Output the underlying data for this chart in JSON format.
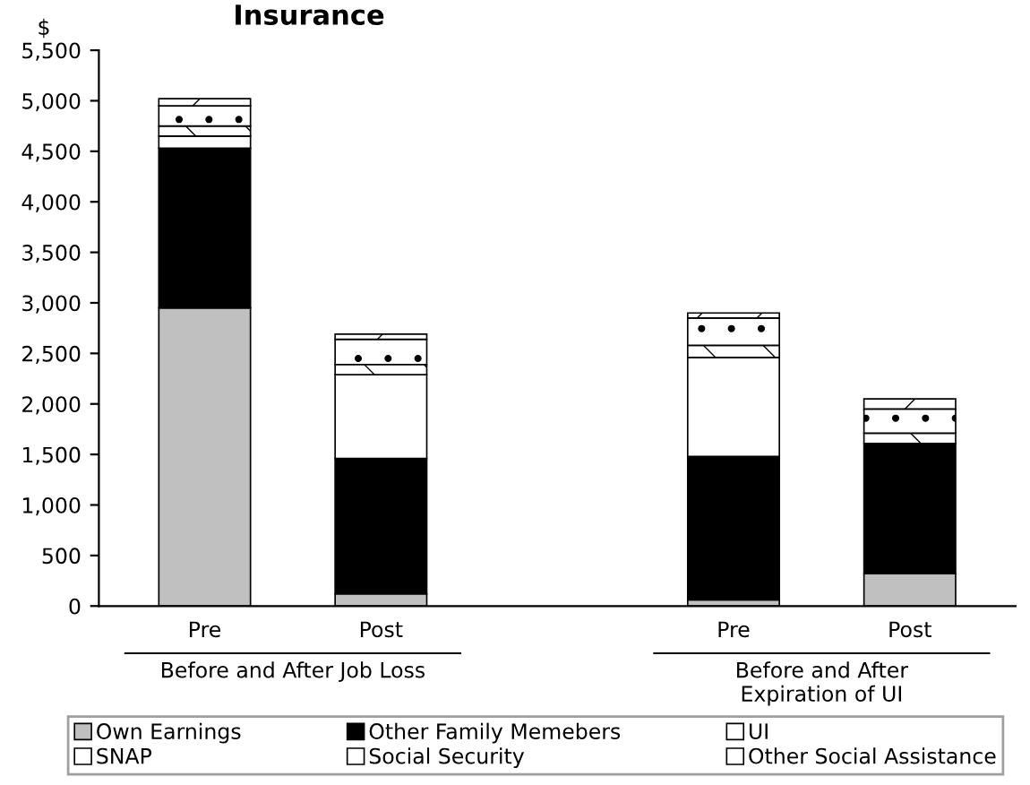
{
  "chart_data": {
    "type": "bar",
    "title": "Insurance",
    "ylabel": "$",
    "stacked": true,
    "categories": [
      "Pre",
      "Post",
      null,
      "Pre",
      "Post"
    ],
    "series": [
      {
        "name": "Own Earnings",
        "color": "#c0c0c0",
        "values": [
          2950,
          120,
          null,
          60,
          320
        ]
      },
      {
        "name": "Other Family Memebers",
        "color": "#000000",
        "values": [
          1580,
          1340,
          null,
          1420,
          1290
        ]
      },
      {
        "name": "UI",
        "color": "#ffffff",
        "values": [
          120,
          830,
          null,
          980,
          null
        ]
      },
      {
        "name": "SNAP",
        "color": "#ffffff",
        "values": [
          100,
          100,
          null,
          120,
          100
        ]
      },
      {
        "name": "Social Security",
        "color": "#ffffff",
        "values": [
          200,
          250,
          null,
          270,
          240
        ]
      },
      {
        "name": "Other Social Assistance",
        "color": "#ffffff",
        "values": [
          70,
          50,
          null,
          50,
          100
        ]
      }
    ],
    "annotations": [
      "Before and After Job Loss",
      "Before and After\nExpiration of UI"
    ],
    "ylim": [
      0,
      5500
    ],
    "yticks": [
      {
        "value": 0,
        "label": "0"
      },
      {
        "value": 500,
        "label": "500"
      },
      {
        "value": 1000,
        "label": "1,000"
      },
      {
        "value": 1500,
        "label": "1,500"
      },
      {
        "value": 2000,
        "label": "2,000"
      },
      {
        "value": 2500,
        "label": "2,500"
      },
      {
        "value": 3000,
        "label": "3,000"
      },
      {
        "value": 3500,
        "label": "3,500"
      },
      {
        "value": 4000,
        "label": "4,000"
      },
      {
        "value": 4500,
        "label": "4,500"
      },
      {
        "value": 5000,
        "label": "5,000"
      },
      {
        "value": 5500,
        "label": "5,500"
      }
    ],
    "grid": false,
    "legend": "bottom"
  }
}
